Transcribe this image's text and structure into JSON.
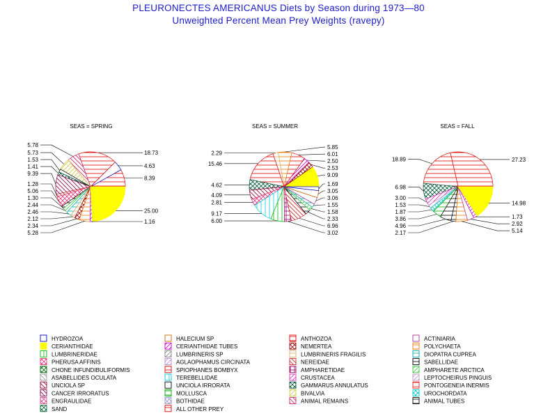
{
  "chart_data": {
    "type": "pie",
    "title": "PLEURONECTES AMERICANUS Diets by Season during 1973—80",
    "subtitle": "Unweighted Percent Mean Prey Weights (ravepy)",
    "pies": [
      {
        "label": "SEAS = SPRING",
        "slices": [
          {
            "name": "ANTHOZOA",
            "value": 8.39,
            "label": "8.39"
          },
          {
            "name": "HYDROZOA",
            "value": 4.63,
            "label": "4.63"
          },
          {
            "name": "ALL OTHER PREY",
            "value": 18.73,
            "label": "18.73"
          },
          {
            "name": "ANIMAL REMAINS",
            "value": 5.78,
            "label": "5.78"
          },
          {
            "name": "BIVALVIA",
            "value": 5.73,
            "label": "5.73"
          },
          {
            "name": "UNCIOLA IRRORATA",
            "value": 1.53,
            "label": "1.53"
          },
          {
            "name": "GAMMARUS ANNULATUS",
            "value": 1.41,
            "label": "1.41"
          },
          {
            "name": "CANCER IRRORATUS",
            "value": 9.39,
            "label": "9.39"
          },
          {
            "name": "NEREIDAE",
            "value": 1.28,
            "label": "1.28"
          },
          {
            "name": "PHERUSA AFFINIS",
            "value": 5.06,
            "label": "5.06"
          },
          {
            "name": "SABELLIDAE",
            "value": 1.3,
            "label": "1.30"
          },
          {
            "name": "AMPHARETE ARCTICA",
            "value": 2.44,
            "label": "2.44"
          },
          {
            "name": "DIOPATRA CUPREA",
            "value": 2.46,
            "label": "2.46"
          },
          {
            "name": "LUMBRINERIS FRAGILIS",
            "value": 2.12,
            "label": "2.12"
          },
          {
            "name": "NEMERTEA",
            "value": 2.34,
            "label": "2.34"
          },
          {
            "name": "POLYCHAETA",
            "value": 5.28,
            "label": "5.28"
          },
          {
            "name": "CERIANTHIDAE TUBES",
            "value": 1.16,
            "label": "1.16"
          },
          {
            "name": "CERIANTHIDAE",
            "value": 25.0,
            "label": "25.00"
          }
        ]
      },
      {
        "label": "SEAS = SUMMER",
        "slices": [
          {
            "name": "CERIANTHIDAE",
            "value": 9.09,
            "label": "9.09"
          },
          {
            "name": "NEMERTEA",
            "value": 2.53,
            "label": "2.53"
          },
          {
            "name": "CERIANTHIDAE TUBES",
            "value": 2.5,
            "label": "2.50"
          },
          {
            "name": "ANTHOZOA",
            "value": 6.01,
            "label": "6.01"
          },
          {
            "name": "POLYCHAETA",
            "value": 5.85,
            "label": "5.85"
          },
          {
            "name": "LUMBRINERIS FRAGILIS",
            "value": 2.29,
            "label": "2.29"
          },
          {
            "name": "ALL OTHER PREY",
            "value": 15.46,
            "label": "15.46"
          },
          {
            "name": "GAMMARUS ANNULATUS",
            "value": 4.62,
            "label": "4.62"
          },
          {
            "name": "UNCIOLA SP",
            "value": 4.09,
            "label": "4.09"
          },
          {
            "name": "PHERUSA AFFINIS",
            "value": 2.81,
            "label": "2.81"
          },
          {
            "name": "TEREBELLIDAE",
            "value": 9.17,
            "label": "9.17"
          },
          {
            "name": "LUMBRINERIDAE",
            "value": 6.0,
            "label": "6.00"
          },
          {
            "name": "AMPHARETIDAE",
            "value": 3.02,
            "label": "3.02"
          },
          {
            "name": "NEREIDAE",
            "value": 6.96,
            "label": "6.96"
          },
          {
            "name": "SABELLIDAE",
            "value": 2.33,
            "label": "2.33"
          },
          {
            "name": "AMPHARETE ARCTICA",
            "value": 1.58,
            "label": "1.58"
          },
          {
            "name": "DIOPATRA CUPREA",
            "value": 1.55,
            "label": "1.55"
          },
          {
            "name": "ACTINIARIA",
            "value": 3.06,
            "label": "3.06"
          },
          {
            "name": "HALECIUM SP",
            "value": 3.05,
            "label": "3.05"
          },
          {
            "name": "HYDROZOA",
            "value": 1.69,
            "label": "1.69"
          }
        ]
      },
      {
        "label": "SEAS = FALL",
        "slices": [
          {
            "name": "ANTHOZOA",
            "value": 27.23,
            "label": "27.23"
          },
          {
            "name": "ALL OTHER PREY",
            "value": 18.89,
            "label": "18.89"
          },
          {
            "name": "GAMMARUS ANNULATUS",
            "value": 6.98,
            "label": "6.98"
          },
          {
            "name": "CRUSTACEA",
            "value": 3.0,
            "label": "3.00"
          },
          {
            "name": "LEPTOCHEIRUS PINGUIS",
            "value": 1.53,
            "label": "1.53"
          },
          {
            "name": "UROCHORDATA",
            "value": 1.87,
            "label": "1.87"
          },
          {
            "name": "MOLLUSCA",
            "value": 3.86,
            "label": "3.86"
          },
          {
            "name": "SABELLIDAE",
            "value": 4.96,
            "label": "4.96"
          },
          {
            "name": "ANIMAL TUBES",
            "value": 2.17,
            "label": "2.17"
          },
          {
            "name": "POLYCHAETA",
            "value": 5.14,
            "label": "5.14"
          },
          {
            "name": "ACTINIARIA",
            "value": 2.92,
            "label": "2.92"
          },
          {
            "name": "CERIANTHIDAE TUBES",
            "value": 1.73,
            "label": "1.73"
          },
          {
            "name": "CERIANTHIDAE",
            "value": 14.98,
            "label": "14.98"
          }
        ]
      }
    ],
    "legend": [
      {
        "name": "HYDROZOA",
        "color": "#0000cc",
        "pattern": "empty"
      },
      {
        "name": "HALECIUM SP",
        "color": "#cc6600",
        "pattern": "empty"
      },
      {
        "name": "ANTHOZOA",
        "color": "#dd0000",
        "pattern": "hlines"
      },
      {
        "name": "ACTINIARIA",
        "color": "#aa3399",
        "pattern": "empty"
      },
      {
        "name": "CERIANTHIDAE",
        "color": "#ffff00",
        "pattern": "solid"
      },
      {
        "name": "CERIANTHIDAE TUBES",
        "color": "#cc00cc",
        "pattern": "diag"
      },
      {
        "name": "NEMERTEA",
        "color": "#990000",
        "pattern": "xhatch"
      },
      {
        "name": "POLYCHAETA",
        "color": "#ee7700",
        "pattern": "hlines"
      },
      {
        "name": "LUMBRINERIDAE",
        "color": "#00bb00",
        "pattern": "vlines"
      },
      {
        "name": "LUMBRINERIS SP",
        "color": "#888888",
        "pattern": "diag"
      },
      {
        "name": "LUMBRINERIS FRAGILIS",
        "color": "#ddaa66",
        "pattern": "hlines"
      },
      {
        "name": "DIOPATRA CUPREA",
        "color": "#00aaaa",
        "pattern": "hlines"
      },
      {
        "name": "PHERUSA AFFINIS",
        "color": "#ee3377",
        "pattern": "xhatch"
      },
      {
        "name": "AGLAOPHAMUS CIRCINATA",
        "color": "#bb88dd",
        "pattern": "diag"
      },
      {
        "name": "NEREIDAE",
        "color": "#cc2222",
        "pattern": "diagr"
      },
      {
        "name": "SABELLIDAE",
        "color": "#000000",
        "pattern": "hlines"
      },
      {
        "name": "CHONE INFUNDIBULIFORMIS",
        "color": "#006600",
        "pattern": "xhatch"
      },
      {
        "name": "SPIOPHANES BOMBYX",
        "color": "#dd0000",
        "pattern": "hlines"
      },
      {
        "name": "AMPHARETIDAE",
        "color": "#990066",
        "pattern": "grid"
      },
      {
        "name": "AMPHARETE ARCTICA",
        "color": "#44cc44",
        "pattern": "diag"
      },
      {
        "name": "ASABELLIDES OCULATA",
        "color": "#999999",
        "pattern": "diagr"
      },
      {
        "name": "TEREBELLIDAE",
        "color": "#00ccdd",
        "pattern": "vlines"
      },
      {
        "name": "CRUSTACEA",
        "color": "#dd33bb",
        "pattern": "diag"
      },
      {
        "name": "LEPTOCHEIRUS PINGUIS",
        "color": "#bb99cc",
        "pattern": "diag"
      },
      {
        "name": "UNCIOLA SP",
        "color": "#990033",
        "pattern": "diagr"
      },
      {
        "name": "UNCIOLA IRRORATA",
        "color": "#000000",
        "pattern": "empty"
      },
      {
        "name": "GAMMARUS ANNULATUS",
        "color": "#005533",
        "pattern": "xhatch"
      },
      {
        "name": "PONTOGENEIA INERMIS",
        "color": "#ee2222",
        "pattern": "hlines"
      },
      {
        "name": "CANCER IRRORATUS",
        "color": "#880044",
        "pattern": "diagr"
      },
      {
        "name": "MOLLUSCA",
        "color": "#00aa00",
        "pattern": "hlines"
      },
      {
        "name": "BIVALVIA",
        "color": "#cccc44",
        "pattern": "diag"
      },
      {
        "name": "UROCHORDATA",
        "color": "#00cccc",
        "pattern": "xhatch"
      },
      {
        "name": "ENGRAULIDAE",
        "color": "#dd4488",
        "pattern": "xhatch"
      },
      {
        "name": "BOTHIDAE",
        "color": "#9999cc",
        "pattern": "xhatch"
      },
      {
        "name": "ANIMAL REMAINS",
        "color": "#cc2266",
        "pattern": "diagr"
      },
      {
        "name": "ANIMAL TUBES",
        "color": "#000000",
        "pattern": "hlines"
      },
      {
        "name": "SAND",
        "color": "#006633",
        "pattern": "xhatch"
      },
      {
        "name": "ALL OTHER PREY",
        "color": "#dd0000",
        "pattern": "hlines"
      }
    ]
  }
}
